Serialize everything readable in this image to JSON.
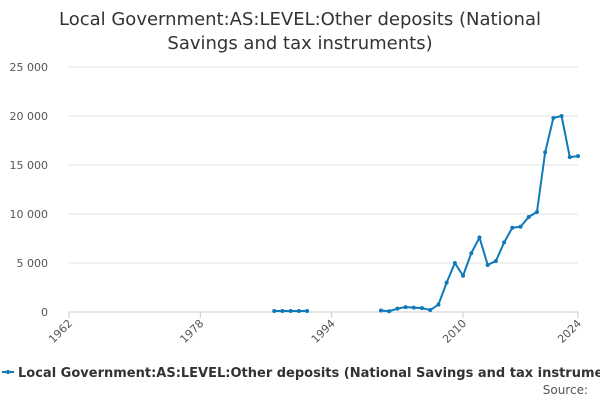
{
  "chart_data": {
    "type": "line",
    "title": "Local Government:AS:LEVEL:Other deposits (National Savings and tax instruments)",
    "x": [
      1987,
      1988,
      1989,
      1990,
      1991,
      1992,
      1993,
      1994,
      1995,
      1996,
      1997,
      1998,
      1999,
      2000,
      2001,
      2002,
      2003,
      2004,
      2005,
      2006,
      2007,
      2008,
      2009,
      2010,
      2011,
      2012,
      2013,
      2014,
      2015,
      2016,
      2017,
      2018,
      2019,
      2020,
      2021,
      2022,
      2023,
      2024
    ],
    "series": [
      {
        "name": "Local Government:AS:LEVEL:Other deposits (National Savings and tax instruments",
        "color": "#0e7ab9",
        "values": [
          100,
          100,
          100,
          100,
          100,
          null,
          null,
          null,
          null,
          null,
          null,
          null,
          null,
          150,
          80,
          350,
          500,
          450,
          400,
          200,
          750,
          3000,
          5000,
          3700,
          6000,
          7600,
          4800,
          5200,
          7100,
          8600,
          8700,
          9700,
          10200,
          16300,
          19800,
          20000,
          15800,
          15900
        ]
      }
    ],
    "xlim": [
      1962,
      2024
    ],
    "xticks": [
      1962,
      1978,
      1994,
      2010,
      2024
    ],
    "ylim": [
      0,
      25000
    ],
    "yticks": [
      0,
      {
        "value": 5000,
        "label": "5 000"
      },
      {
        "value": 10000,
        "label": "10 000"
      },
      {
        "value": 15000,
        "label": "15 000"
      },
      {
        "value": 20000,
        "label": "20 000"
      },
      {
        "value": 25000,
        "label": "25 000"
      }
    ],
    "grid": true,
    "source": "Source:"
  }
}
